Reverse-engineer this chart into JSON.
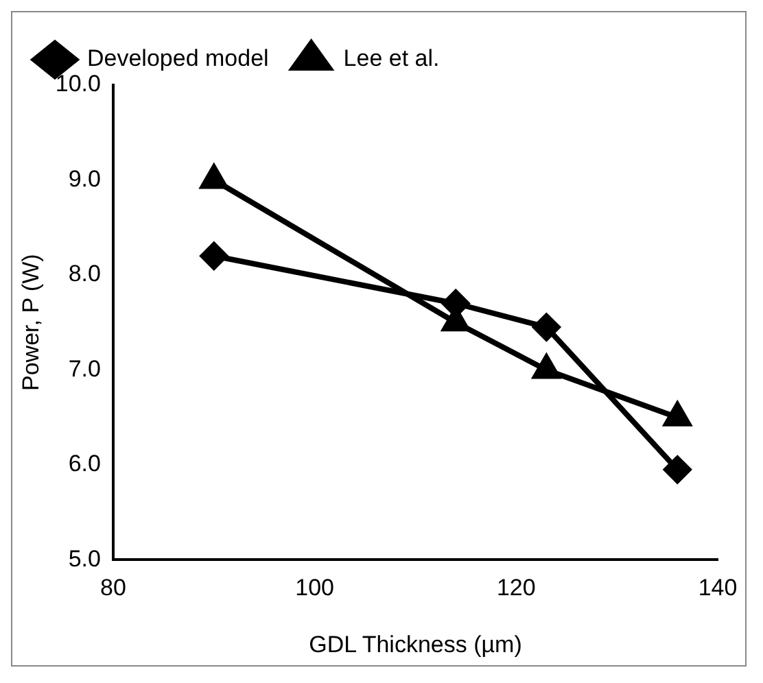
{
  "chart_data": {
    "type": "line",
    "xlabel": "GDL Thickness (µm)",
    "ylabel": "Power, P (W)",
    "x": [
      90,
      114,
      123,
      136
    ],
    "series": [
      {
        "name": "Developed model",
        "color": "#000000",
        "values": [
          8.2,
          7.7,
          7.45,
          5.95
        ],
        "marker": "diamond"
      },
      {
        "name": "Lee et al.",
        "color": "#000000",
        "values": [
          9.0,
          7.5,
          7.0,
          6.5
        ],
        "marker": "triangle"
      }
    ],
    "xlim": [
      80,
      140
    ],
    "xticks": [
      80,
      100,
      120,
      140
    ],
    "ylim": [
      5,
      10
    ],
    "yticks": [
      {
        "value": 5,
        "label": "5.0"
      },
      {
        "value": 6,
        "label": "6.0"
      },
      {
        "value": 7,
        "label": "7.0"
      },
      {
        "value": 8,
        "label": "8.0"
      },
      {
        "value": 9,
        "label": "9.0"
      },
      {
        "value": 10,
        "label": "10.0"
      }
    ],
    "grid": false,
    "legend": "top",
    "line_style": "solid"
  }
}
